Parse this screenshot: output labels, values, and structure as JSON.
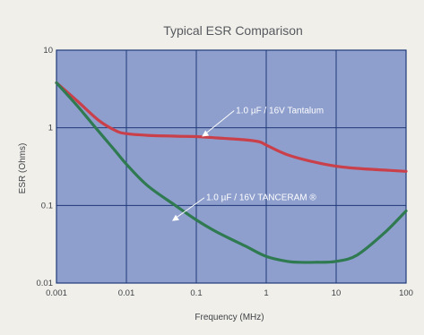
{
  "chart_data": {
    "type": "line",
    "title": "Typical ESR Comparison",
    "xlabel": "Frequency (MHz)",
    "ylabel": "ESR (Ohms)",
    "x_scale": "log",
    "y_scale": "log",
    "xlim": [
      0.001,
      100
    ],
    "ylim": [
      0.01,
      10
    ],
    "grid": true,
    "x_ticks": [
      {
        "value": 0.001,
        "label": "0.001"
      },
      {
        "value": 0.01,
        "label": "0.01"
      },
      {
        "value": 0.1,
        "label": "0.1"
      },
      {
        "value": 1,
        "label": "1"
      },
      {
        "value": 10,
        "label": "10"
      },
      {
        "value": 100,
        "label": "100"
      }
    ],
    "y_ticks": [
      {
        "value": 0.01,
        "label": "0.01"
      },
      {
        "value": 0.1,
        "label": "0.1"
      },
      {
        "value": 1,
        "label": "1"
      },
      {
        "value": 10,
        "label": "10"
      }
    ],
    "series": [
      {
        "name": "1.0 µF / 16V Tantalum",
        "color": "#c9404a",
        "x": [
          0.001,
          0.002,
          0.004,
          0.007,
          0.01,
          0.02,
          0.05,
          0.1,
          0.2,
          0.5,
          0.8,
          1,
          2,
          5,
          10,
          20,
          50,
          100
        ],
        "y": [
          3.8,
          2.2,
          1.25,
          0.92,
          0.84,
          0.8,
          0.78,
          0.77,
          0.74,
          0.7,
          0.66,
          0.6,
          0.45,
          0.36,
          0.32,
          0.3,
          0.285,
          0.275
        ]
      },
      {
        "name": "1.0 µF / 16V TANCERAM ®",
        "color": "#2f7a50",
        "x": [
          0.001,
          0.002,
          0.004,
          0.007,
          0.01,
          0.02,
          0.05,
          0.1,
          0.2,
          0.5,
          1,
          2,
          3,
          5,
          10,
          20,
          50,
          100
        ],
        "y": [
          3.8,
          1.9,
          0.9,
          0.5,
          0.34,
          0.18,
          0.1,
          0.065,
          0.045,
          0.03,
          0.022,
          0.019,
          0.0185,
          0.0185,
          0.019,
          0.023,
          0.045,
          0.085
        ]
      }
    ],
    "annotations": [
      {
        "text": "1.0 µF / 16V Tantalum",
        "x": 0.12,
        "y": 0.77
      },
      {
        "text": "1.0 µF / 16V TANCERAM ®",
        "x": 0.045,
        "y": 0.063
      }
    ],
    "colors": {
      "plot_background": "#8e9fcd",
      "grid": "#1f3a78",
      "page_background": "#f1efea"
    }
  }
}
